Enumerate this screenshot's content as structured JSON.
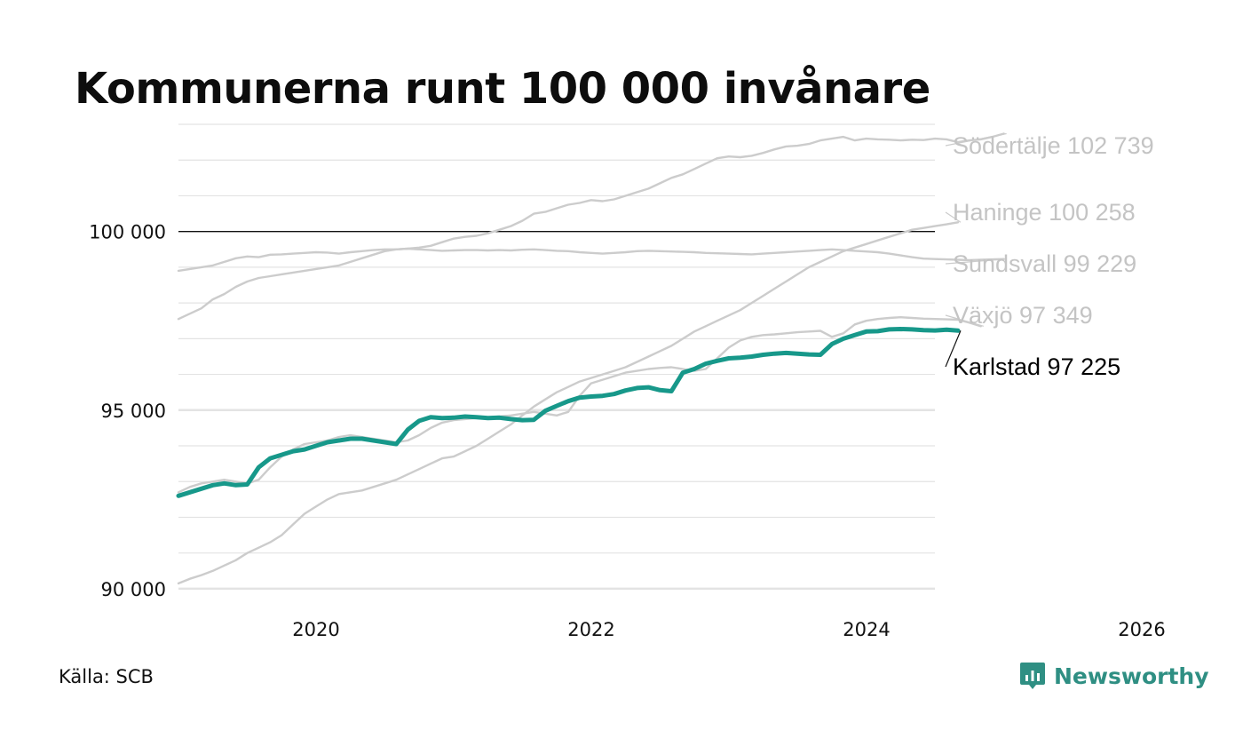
{
  "title": "Kommunerna runt 100 000 invånare",
  "source": "Källa: SCB",
  "brand": {
    "name": "Newsworthy",
    "icon": "newsworthy-logo-icon",
    "color": "#2f8f83"
  },
  "colors": {
    "highlight": "#17988a",
    "muted": "#cccccc",
    "muted_label": "#c4c4c4",
    "reference": "#111111",
    "grid": "#e3e3e3"
  },
  "chart_data": {
    "type": "line",
    "title": "Kommunerna runt 100 000 invånare",
    "xlabel": "",
    "ylabel": "",
    "xlim": [
      2019.0,
      2026.0
    ],
    "ylim": [
      89700,
      103000
    ],
    "x_ticks": [
      2020,
      2022,
      2024,
      2026
    ],
    "x_tick_labels": [
      "2020",
      "2022",
      "2024",
      "2026"
    ],
    "y_ticks": [
      90000,
      95000,
      100000
    ],
    "y_tick_labels": [
      "90 000",
      "95 000",
      "100 000"
    ],
    "reference_line": 100000,
    "grid": true,
    "x_start": 2019.0,
    "x_step": 0.0833,
    "series": [
      {
        "name": "Södertälje",
        "label": "Södertälje 102 739",
        "highlight": false,
        "values": [
          98900,
          98950,
          99000,
          99050,
          99150,
          99250,
          99300,
          99280,
          99350,
          99360,
          99380,
          99400,
          99420,
          99410,
          99380,
          99420,
          99450,
          99480,
          99500,
          99500,
          99520,
          99550,
          99600,
          99700,
          99800,
          99850,
          99880,
          99950,
          100050,
          100150,
          100300,
          100500,
          100550,
          100650,
          100750,
          100800,
          100880,
          100850,
          100900,
          101000,
          101100,
          101200,
          101350,
          101500,
          101600,
          101750,
          101900,
          102050,
          102100,
          102080,
          102120,
          102200,
          102300,
          102380,
          102400,
          102450,
          102550,
          102600,
          102650,
          102550,
          102600,
          102580,
          102570,
          102550,
          102570,
          102560,
          102600,
          102580,
          102500,
          102550,
          102580,
          102650,
          102739
        ]
      },
      {
        "name": "Haninge",
        "label": "Haninge 100 258",
        "highlight": false,
        "values": [
          90150,
          90280,
          90380,
          90500,
          90650,
          90800,
          91000,
          91150,
          91300,
          91500,
          91800,
          92100,
          92300,
          92500,
          92650,
          92700,
          92750,
          92850,
          92950,
          93050,
          93200,
          93350,
          93500,
          93650,
          93700,
          93850,
          94000,
          94200,
          94400,
          94600,
          94850,
          95100,
          95300,
          95500,
          95650,
          95800,
          95900,
          96000,
          96100,
          96200,
          96350,
          96500,
          96650,
          96800,
          97000,
          97200,
          97350,
          97500,
          97650,
          97800,
          98000,
          98200,
          98400,
          98600,
          98800,
          99000,
          99150,
          99300,
          99450,
          99550,
          99650,
          99750,
          99850,
          99950,
          100050,
          100100,
          100150,
          100200,
          100258
        ]
      },
      {
        "name": "Sundsvall",
        "label": "Sundsvall  99 229",
        "highlight": false,
        "values": [
          97550,
          97700,
          97850,
          98100,
          98250,
          98450,
          98600,
          98700,
          98750,
          98800,
          98850,
          98900,
          98950,
          99000,
          99050,
          99150,
          99250,
          99350,
          99450,
          99500,
          99520,
          99500,
          99480,
          99460,
          99470,
          99480,
          99480,
          99470,
          99480,
          99470,
          99490,
          99500,
          99480,
          99460,
          99450,
          99420,
          99400,
          99380,
          99400,
          99420,
          99450,
          99460,
          99450,
          99440,
          99430,
          99420,
          99400,
          99390,
          99380,
          99370,
          99360,
          99380,
          99400,
          99420,
          99440,
          99460,
          99480,
          99500,
          99480,
          99460,
          99440,
          99420,
          99380,
          99330,
          99280,
          99240,
          99230,
          99220,
          99210,
          99200,
          99210,
          99220,
          99229
        ]
      },
      {
        "name": "Växjö",
        "label": "Växjö  97 349",
        "highlight": false,
        "values": [
          92700,
          92850,
          92950,
          93000,
          93050,
          93000,
          92950,
          93050,
          93400,
          93700,
          93900,
          94050,
          94100,
          94150,
          94250,
          94300,
          94250,
          94200,
          94150,
          94100,
          94150,
          94300,
          94500,
          94650,
          94720,
          94750,
          94780,
          94800,
          94820,
          94850,
          94900,
          94950,
          94900,
          94850,
          94950,
          95400,
          95750,
          95850,
          95950,
          96050,
          96100,
          96150,
          96180,
          96200,
          96150,
          96100,
          96150,
          96450,
          96750,
          96950,
          97050,
          97100,
          97120,
          97150,
          97180,
          97200,
          97220,
          97050,
          97150,
          97400,
          97500,
          97550,
          97580,
          97600,
          97580,
          97560,
          97550,
          97540,
          97530,
          97450,
          97349
        ]
      },
      {
        "name": "Karlstad",
        "label": "Karlstad  97 225",
        "highlight": true,
        "values": [
          92600,
          92700,
          92800,
          92900,
          92950,
          92900,
          92920,
          93400,
          93650,
          93750,
          93850,
          93900,
          94000,
          94100,
          94150,
          94200,
          94200,
          94150,
          94100,
          94050,
          94450,
          94700,
          94800,
          94780,
          94790,
          94820,
          94800,
          94780,
          94790,
          94750,
          94720,
          94730,
          94980,
          95120,
          95250,
          95350,
          95380,
          95400,
          95450,
          95550,
          95620,
          95640,
          95560,
          95530,
          96050,
          96150,
          96300,
          96380,
          96450,
          96470,
          96500,
          96550,
          96580,
          96600,
          96580,
          96560,
          96550,
          96850,
          97000,
          97100,
          97200,
          97210,
          97260,
          97270,
          97260,
          97240,
          97230,
          97250,
          97225
        ]
      }
    ]
  }
}
